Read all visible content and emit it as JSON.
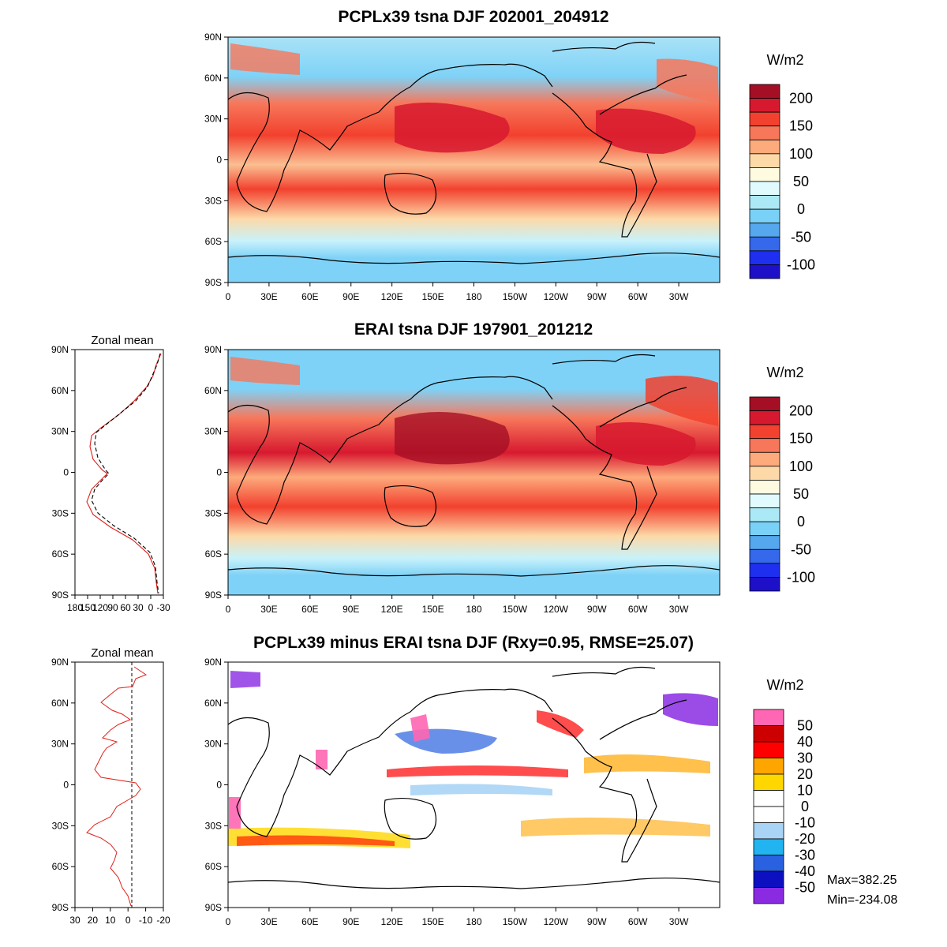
{
  "panels": [
    {
      "id": "model",
      "title": "PCPLx39 tsna DJF 202001_204912",
      "unit": "W/m2",
      "colorbar_labels": [
        "200",
        "150",
        "100",
        "50",
        "0",
        "-50",
        "-100"
      ],
      "colorbar_colors": [
        "#a50f25",
        "#d7192f",
        "#f2412e",
        "#f7775a",
        "#fdaa7c",
        "#fdd9a8",
        "#fffbe0",
        "#e0fafd",
        "#abe9f6",
        "#7ad1f7",
        "#55a7ee",
        "#3568ea",
        "#1e2ff0",
        "#1e10c8"
      ]
    },
    {
      "id": "obs",
      "title": "ERAI tsna DJF 197901_201212",
      "unit": "W/m2",
      "colorbar_labels": [
        "200",
        "150",
        "100",
        "50",
        "0",
        "-50",
        "-100"
      ],
      "colorbar_colors": [
        "#a50f25",
        "#d7192f",
        "#f2412e",
        "#f7775a",
        "#fdaa7c",
        "#fdd9a8",
        "#fffbe0",
        "#e0fafd",
        "#abe9f6",
        "#7ad1f7",
        "#55a7ee",
        "#3568ea",
        "#1e2ff0",
        "#1e10c8"
      ],
      "zonal_title": "Zonal mean",
      "zonal_xticks": [
        "180",
        "150",
        "120",
        "90",
        "60",
        "30",
        "0",
        "-30"
      ]
    },
    {
      "id": "diff",
      "title": "PCPLx39 minus ERAI tsna DJF (Rxy=0.95, RMSE=25.07)",
      "unit": "W/m2",
      "colorbar_labels": [
        "50",
        "40",
        "30",
        "20",
        "10",
        "0",
        "-10",
        "-20",
        "-30",
        "-40",
        "-50"
      ],
      "colorbar_colors": [
        "#ff66b3",
        "#cc0000",
        "#ff0000",
        "#ffa500",
        "#ffd700",
        "#ffffff",
        "#ffffff",
        "#a9d4f5",
        "#22b4f0",
        "#2a61e0",
        "#0c10c0",
        "#8a2be2"
      ],
      "zonal_title": "Zonal mean",
      "zonal_xticks": [
        "30",
        "20",
        "10",
        "0",
        "-10",
        "-20"
      ],
      "max_label": "Max=382.25",
      "min_label": "Min=-234.08"
    }
  ],
  "map_axes": {
    "lon_ticks": [
      "0",
      "30E",
      "60E",
      "90E",
      "120E",
      "150E",
      "180",
      "150W",
      "120W",
      "90W",
      "60W",
      "30W"
    ],
    "lat_ticks": [
      "90N",
      "60N",
      "30N",
      "0",
      "30S",
      "60S",
      "90S"
    ]
  },
  "series_colors": {
    "model": "#e0201a",
    "obs": "#000000"
  }
}
